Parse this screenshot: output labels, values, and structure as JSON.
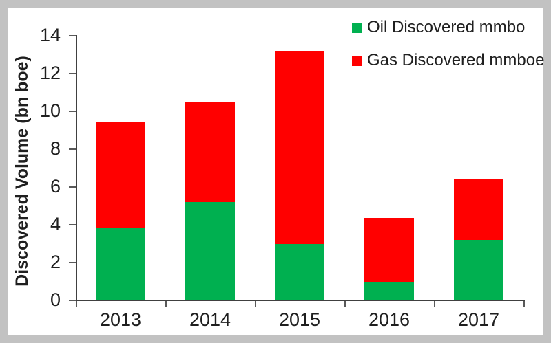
{
  "chart_data": {
    "type": "bar",
    "stacked": true,
    "title": "",
    "xlabel": "",
    "ylabel": "Discovered Volume (bn boe)",
    "categories": [
      "2013",
      "2014",
      "2015",
      "2016",
      "2017"
    ],
    "series": [
      {
        "name": "Oil Discovered mmbo",
        "color": "#00B050",
        "values": [
          3.85,
          5.2,
          3.0,
          1.0,
          3.2
        ]
      },
      {
        "name": "Gas Discovered mmboe",
        "color": "#FF0000",
        "values": [
          5.6,
          5.3,
          10.2,
          3.35,
          3.25
        ]
      }
    ],
    "stack_totals": [
      9.45,
      10.5,
      13.2,
      4.35,
      6.45
    ],
    "ylim": [
      0,
      14
    ],
    "ytick_step": 2,
    "yticks": [
      0,
      2,
      4,
      6,
      8,
      10,
      12,
      14
    ],
    "grid": false,
    "legend_position": "top-right",
    "colors": {
      "oil": "#00B050",
      "gas": "#FF0000",
      "axis": "#404040",
      "text": "#1f1f1f",
      "frame_border": "#c2c2c2",
      "background": "#ffffff"
    }
  }
}
